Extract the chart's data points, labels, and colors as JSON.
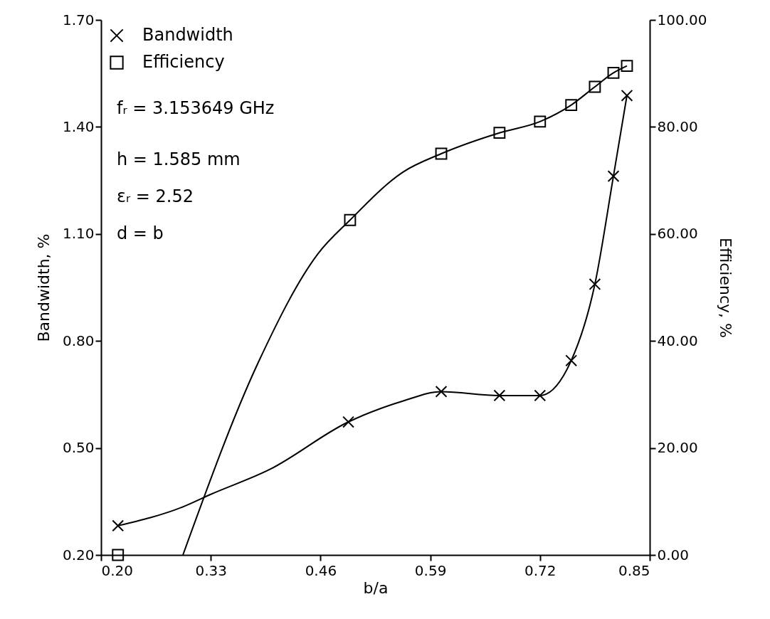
{
  "chart_data": {
    "type": "scatter",
    "xlabel": "b/a",
    "ylabel": "Bandwidth, %",
    "y2label": "Efficiency, %",
    "x": [
      0.22,
      0.493,
      0.603,
      0.672,
      0.72,
      0.757,
      0.785,
      0.807,
      0.823
    ],
    "series": [
      {
        "name": "Bandwidth",
        "marker": "cross",
        "color": "#000000",
        "values": [
          0.282,
          0.573,
          0.658,
          0.647,
          0.647,
          0.745,
          0.959,
          1.262,
          1.488
        ]
      },
      {
        "name": "Efficiency",
        "marker": "square",
        "axis": "y2",
        "color": "#000000",
        "x": [
          0.22,
          0.495,
          0.603,
          0.672,
          0.72,
          0.757,
          0.785,
          0.807,
          0.823
        ],
        "values": [
          0,
          62.6,
          75.0,
          78.9,
          81.0,
          84.1,
          87.5,
          90.1,
          91.4
        ]
      },
      {
        "type": "line",
        "color": "#000000",
        "x": [
          0.22,
          0.297,
          0.33,
          0.4,
          0.493,
          0.558,
          0.603,
          0.672,
          0.72,
          0.757,
          0.785,
          0.807,
          0.823
        ],
        "values": [
          0.282,
          0.335,
          0.37,
          0.44,
          0.573,
          0.632,
          0.658,
          0.647,
          0.647,
          0.745,
          0.959,
          1.262,
          1.488
        ]
      },
      {
        "type": "line",
        "axis": "y2",
        "color": "#000000",
        "x": [
          0.297,
          0.386,
          0.457,
          0.495,
          0.558,
          0.603,
          0.672,
          0.72,
          0.757,
          0.785,
          0.807,
          0.823
        ],
        "values": [
          0,
          35.9,
          56.3,
          62.6,
          71.6,
          75.0,
          78.9,
          81.0,
          84.1,
          87.5,
          90.1,
          91.4
        ]
      }
    ],
    "xlim": [
      0.2,
      0.85
    ],
    "xticks": [
      {
        "value": 0.2,
        "label": "0.20"
      },
      {
        "value": 0.33,
        "label": "0.33"
      },
      {
        "value": 0.46,
        "label": "0.46"
      },
      {
        "value": 0.59,
        "label": "0.59"
      },
      {
        "value": 0.72,
        "label": "0.72"
      },
      {
        "value": 0.85,
        "label": "0.85"
      }
    ],
    "ylim": [
      0.2,
      1.7
    ],
    "yticks": [
      {
        "value": 0.2,
        "label": "0.20"
      },
      {
        "value": 0.5,
        "label": "0.50"
      },
      {
        "value": 0.8,
        "label": "0.80"
      },
      {
        "value": 1.1,
        "label": "1.10"
      },
      {
        "value": 1.4,
        "label": "1.40"
      },
      {
        "value": 1.7,
        "label": "1.70"
      }
    ],
    "y2lim": [
      0,
      100
    ],
    "y2ticks": [
      {
        "value": 0,
        "label": "0.00"
      },
      {
        "value": 20,
        "label": "20.00"
      },
      {
        "value": 40,
        "label": "40.00"
      },
      {
        "value": 60,
        "label": "60.00"
      },
      {
        "value": 80,
        "label": "80.00"
      },
      {
        "value": 100,
        "label": "100.00"
      }
    ],
    "annotations": [
      "fᵣ = 3.153649 GHz",
      "h = 1.585 mm",
      "εᵣ = 2.52",
      "d = b"
    ],
    "legend": "top left",
    "grid": false
  }
}
